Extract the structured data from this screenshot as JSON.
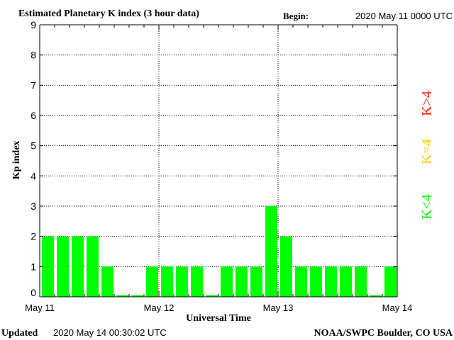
{
  "header": {
    "title": "Estimated Planetary K index (3 hour data)",
    "begin_label": "Begin:",
    "begin_value": "2020 May 11 0000 UTC"
  },
  "footer": {
    "updated_label": "Updated",
    "updated_value": "2020 May 14 00:30:02 UTC",
    "source": "NOAA/SWPC Boulder, CO USA"
  },
  "legend": {
    "high": "K>4",
    "equal": "K=4",
    "low": "K<4"
  },
  "colors": {
    "low": "#00ff00",
    "equal": "#ffcc00",
    "high": "#ff2200",
    "axis": "#000000",
    "grid": "#000000"
  },
  "chart_data": {
    "type": "bar",
    "title": "Estimated Planetary K index (3 hour data)",
    "xlabel": "Universal Time",
    "ylabel": "Kp index",
    "ylim": [
      0,
      9
    ],
    "yticks": [
      0,
      1,
      2,
      3,
      4,
      5,
      6,
      7,
      8,
      9
    ],
    "xtick_labels": [
      "May 11",
      "May 12",
      "May 13",
      "May 14"
    ],
    "grid": true,
    "interval_hours": 3,
    "values": [
      2,
      2,
      2,
      2,
      1,
      0.05,
      0.05,
      1,
      1,
      1,
      1,
      0.05,
      1,
      1,
      1,
      3,
      2,
      1,
      1,
      1,
      1,
      1,
      0.05,
      1
    ]
  }
}
